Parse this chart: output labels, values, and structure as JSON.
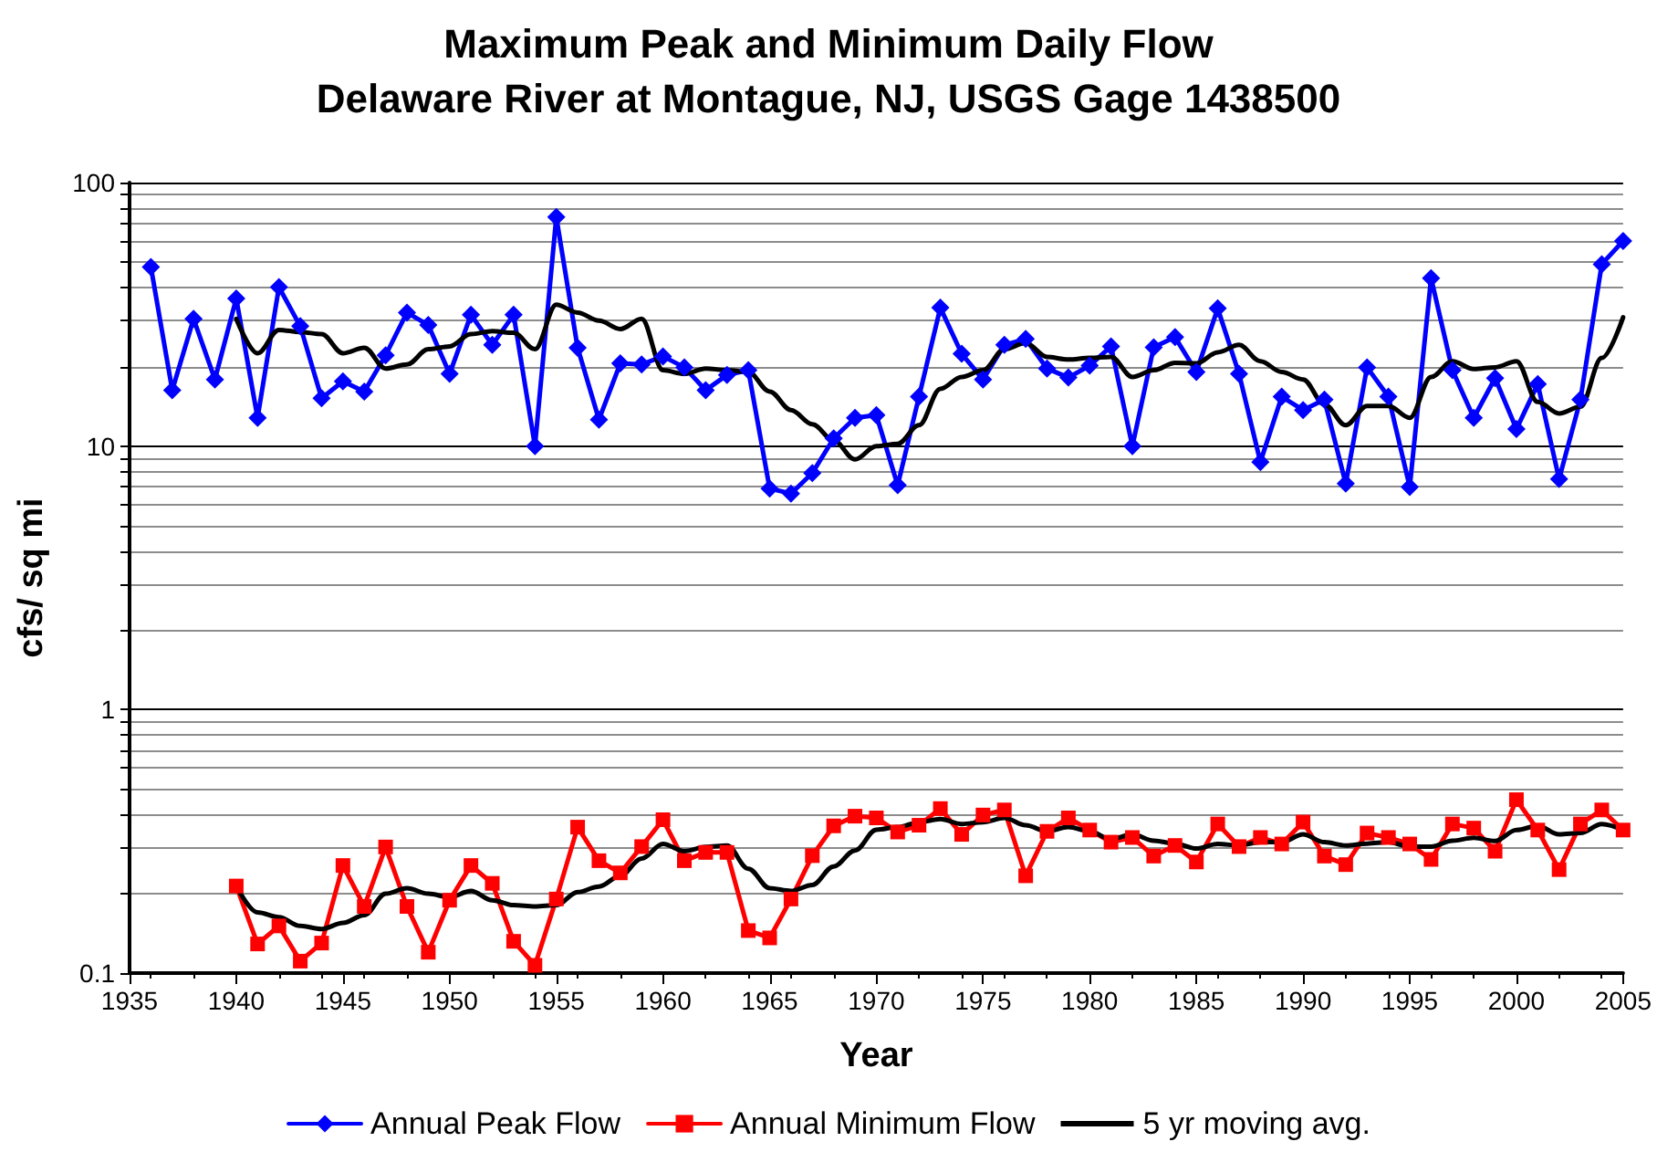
{
  "chart_data": {
    "type": "line",
    "title": "Maximum Peak and Minimum Daily Flow",
    "subtitle": "Delaware River at Montague, NJ, USGS Gage 1438500",
    "xlabel": "Year",
    "ylabel": "cfs/ sq mi",
    "log": "y",
    "grid": "y",
    "legend": "bottom",
    "xlim": [
      1935,
      2005
    ],
    "xticks": [
      1935,
      1940,
      1945,
      1950,
      1955,
      1960,
      1965,
      1970,
      1975,
      1980,
      1985,
      1990,
      1995,
      2000,
      2005
    ],
    "ylim": [
      0.1,
      100
    ],
    "yticks": [
      0.1,
      {
        "value": 0.2,
        "label": null
      },
      {
        "value": 0.3,
        "label": null
      },
      {
        "value": 0.4,
        "label": null
      },
      {
        "value": 0.5,
        "label": null
      },
      {
        "value": 0.6,
        "label": null
      },
      {
        "value": 0.7,
        "label": null
      },
      {
        "value": 0.8,
        "label": null
      },
      {
        "value": 0.9,
        "label": null
      },
      1,
      {
        "value": 2,
        "label": null
      },
      {
        "value": 3,
        "label": null
      },
      {
        "value": 4,
        "label": null
      },
      {
        "value": 5,
        "label": null
      },
      {
        "value": 6,
        "label": null
      },
      {
        "value": 7,
        "label": null
      },
      {
        "value": 8,
        "label": null
      },
      {
        "value": 9,
        "label": null
      },
      10,
      {
        "value": 20,
        "label": null
      },
      {
        "value": 30,
        "label": null
      },
      {
        "value": 40,
        "label": null
      },
      {
        "value": 50,
        "label": null
      },
      {
        "value": 60,
        "label": null
      },
      {
        "value": 70,
        "label": null
      },
      {
        "value": 80,
        "label": null
      },
      {
        "value": 90,
        "label": null
      },
      100
    ],
    "series": [
      {
        "name": "Annual Peak Flow",
        "color": "#0000ff",
        "marker": "diamond",
        "x": [
          1936,
          1937,
          1938,
          1939,
          1940,
          1941,
          1942,
          1943,
          1944,
          1945,
          1946,
          1947,
          1948,
          1949,
          1950,
          1951,
          1952,
          1953,
          1954,
          1955,
          1956,
          1957,
          1958,
          1959,
          1960,
          1961,
          1962,
          1963,
          1964,
          1965,
          1966,
          1967,
          1968,
          1969,
          1970,
          1971,
          1972,
          1973,
          1974,
          1975,
          1976,
          1977,
          1978,
          1979,
          1980,
          1981,
          1982,
          1983,
          1984,
          1985,
          1986,
          1987,
          1988,
          1989,
          1990,
          1991,
          1992,
          1993,
          1994,
          1995,
          1996,
          1997,
          1998,
          1999,
          2000,
          2001,
          2002,
          2003,
          2004,
          2005
        ],
        "values": [
          47.8,
          16.3,
          30.4,
          17.9,
          36.3,
          12.8,
          40.1,
          28.5,
          15.2,
          17.6,
          16.1,
          22.1,
          32.1,
          28.8,
          18.8,
          31.5,
          24.2,
          31.5,
          10,
          74,
          23.6,
          12.6,
          20.6,
          20.4,
          21.9,
          19.9,
          16.3,
          18.6,
          19.4,
          6.9,
          6.6,
          7.9,
          10.7,
          12.8,
          13.1,
          7.1,
          15.4,
          33.5,
          22.4,
          17.9,
          24.2,
          25.5,
          19.7,
          18.2,
          20.2,
          23.9,
          10,
          23.7,
          25.9,
          19.1,
          33.3,
          18.8,
          8.7,
          15.4,
          13.7,
          15,
          7.2,
          19.9,
          15.4,
          7,
          43.4,
          19.4,
          12.8,
          18.1,
          11.6,
          17.2,
          7.5,
          15,
          49,
          60
        ]
      },
      {
        "name": "Annual Minimum Flow",
        "color": "#ff0000",
        "marker": "square",
        "x": [
          1940,
          1941,
          1942,
          1943,
          1944,
          1945,
          1946,
          1947,
          1948,
          1949,
          1950,
          1951,
          1952,
          1953,
          1954,
          1955,
          1956,
          1957,
          1958,
          1959,
          1960,
          1961,
          1962,
          1963,
          1964,
          1965,
          1966,
          1967,
          1968,
          1969,
          1970,
          1971,
          1972,
          1973,
          1974,
          1975,
          1976,
          1977,
          1978,
          1979,
          1980,
          1981,
          1982,
          1983,
          1984,
          1985,
          1986,
          1987,
          1988,
          1989,
          1990,
          1991,
          1992,
          1993,
          1994,
          1995,
          1996,
          1997,
          1998,
          1999,
          2000,
          2001,
          2002,
          2003,
          2004,
          2005
        ],
        "values": [
          0.214,
          0.129,
          0.151,
          0.111,
          0.13,
          0.256,
          0.179,
          0.301,
          0.179,
          0.12,
          0.189,
          0.256,
          0.219,
          0.132,
          0.107,
          0.191,
          0.358,
          0.267,
          0.24,
          0.302,
          0.382,
          0.267,
          0.287,
          0.287,
          0.145,
          0.136,
          0.191,
          0.279,
          0.362,
          0.394,
          0.388,
          0.343,
          0.364,
          0.421,
          0.336,
          0.398,
          0.416,
          0.234,
          0.345,
          0.388,
          0.349,
          0.314,
          0.327,
          0.278,
          0.305,
          0.264,
          0.368,
          0.302,
          0.327,
          0.309,
          0.374,
          0.278,
          0.258,
          0.34,
          0.327,
          0.309,
          0.27,
          0.368,
          0.355,
          0.29,
          0.455,
          0.349,
          0.247,
          0.368,
          0.416,
          0.349
        ]
      },
      {
        "name": "5 yr moving avg.",
        "color": "#000000",
        "marker": "none",
        "x": [
          1940,
          1941,
          1942,
          1943,
          1944,
          1945,
          1946,
          1947,
          1948,
          1949,
          1950,
          1951,
          1952,
          1953,
          1954,
          1955,
          1956,
          1957,
          1958,
          1959,
          1960,
          1961,
          1962,
          1963,
          1964,
          1965,
          1966,
          1967,
          1968,
          1969,
          1970,
          1971,
          1972,
          1973,
          1974,
          1975,
          1976,
          1977,
          1978,
          1979,
          1980,
          1981,
          1982,
          1983,
          1984,
          1985,
          1986,
          1987,
          1988,
          1989,
          1990,
          1991,
          1992,
          1993,
          1994,
          1995,
          1996,
          1997,
          1998,
          1999,
          2000,
          2001,
          2002,
          2003,
          2004,
          2005
        ],
        "values": [
          30.4,
          22.5,
          27.6,
          27.1,
          26.6,
          22.5,
          23.6,
          19.7,
          20.4,
          23.3,
          23.9,
          26.6,
          27.3,
          26.9,
          23.3,
          34.4,
          32.1,
          29.9,
          27.8,
          30.4,
          19.4,
          18.8,
          19.7,
          19.4,
          19.1,
          16.1,
          13.7,
          12.1,
          10.5,
          8.9,
          10,
          10.2,
          12,
          16.5,
          18.3,
          19.4,
          23.3,
          24.6,
          21.8,
          21.3,
          21.6,
          21.8,
          18.3,
          19.4,
          20.7,
          20.6,
          22.7,
          24.2,
          21,
          19.1,
          17.9,
          14.4,
          12,
          14.2,
          14.2,
          12.8,
          18.3,
          21,
          19.6,
          19.9,
          21,
          14.7,
          13.3,
          14.1,
          21.6,
          30.8
        ]
      },
      {
        "color": "#000000",
        "marker": "none",
        "x": [
          1940,
          1941,
          1942,
          1943,
          1944,
          1945,
          1946,
          1947,
          1948,
          1949,
          1950,
          1951,
          1952,
          1953,
          1954,
          1955,
          1956,
          1957,
          1958,
          1959,
          1960,
          1961,
          1962,
          1963,
          1964,
          1965,
          1966,
          1967,
          1968,
          1969,
          1970,
          1971,
          1972,
          1973,
          1974,
          1975,
          1976,
          1977,
          1978,
          1979,
          1980,
          1981,
          1982,
          1983,
          1984,
          1985,
          1986,
          1987,
          1988,
          1989,
          1990,
          1991,
          1992,
          1993,
          1994,
          1995,
          1996,
          1997,
          1998,
          1999,
          2000,
          2001,
          2002,
          2003,
          2004,
          2005
        ],
        "values": [
          0.214,
          0.17,
          0.163,
          0.151,
          0.147,
          0.155,
          0.166,
          0.2,
          0.21,
          0.2,
          0.194,
          0.205,
          0.189,
          0.181,
          0.179,
          0.181,
          0.203,
          0.213,
          0.234,
          0.272,
          0.309,
          0.29,
          0.301,
          0.305,
          0.249,
          0.21,
          0.205,
          0.216,
          0.254,
          0.292,
          0.35,
          0.358,
          0.374,
          0.384,
          0.368,
          0.374,
          0.388,
          0.364,
          0.345,
          0.358,
          0.345,
          0.322,
          0.336,
          0.318,
          0.31,
          0.297,
          0.309,
          0.305,
          0.314,
          0.314,
          0.336,
          0.314,
          0.305,
          0.31,
          0.314,
          0.302,
          0.302,
          0.318,
          0.326,
          0.317,
          0.349,
          0.362,
          0.336,
          0.34,
          0.368,
          0.349
        ]
      }
    ]
  }
}
